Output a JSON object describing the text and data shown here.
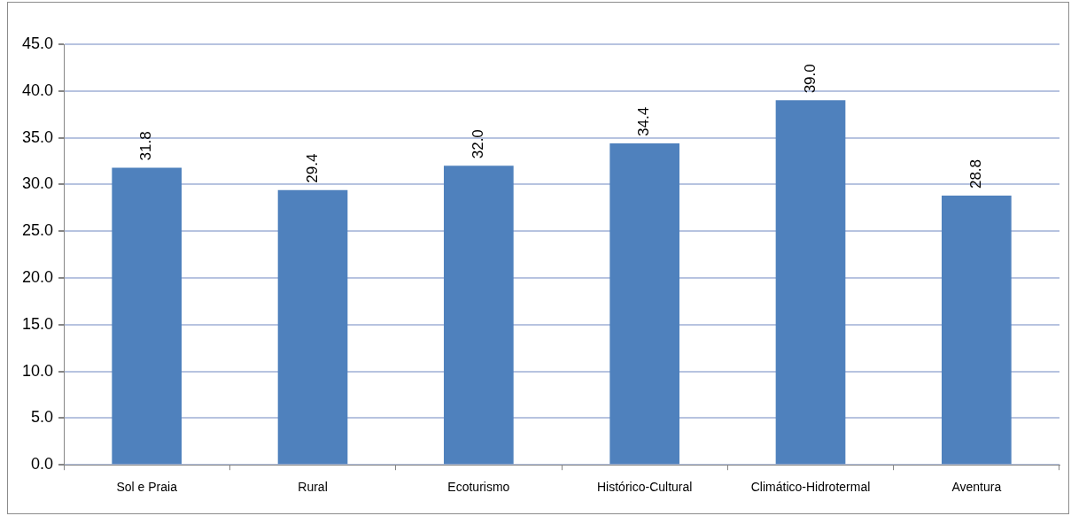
{
  "chart_data": {
    "type": "bar",
    "categories": [
      "Sol e Praia",
      "Rural",
      "Ecoturismo",
      "Histórico-Cultural",
      "Climático-Hidrotermal",
      "Aventura"
    ],
    "values": [
      31.8,
      29.4,
      32.0,
      34.4,
      39.0,
      28.8
    ],
    "color": "#4f81bd",
    "ylim": [
      0,
      45
    ],
    "yticks": [
      {
        "value": 0,
        "label": "0.0"
      },
      {
        "value": 5,
        "label": "5.0"
      },
      {
        "value": 10,
        "label": "10.0"
      },
      {
        "value": 15,
        "label": "15.0"
      },
      {
        "value": 20,
        "label": "20.0"
      },
      {
        "value": 25,
        "label": "25.0"
      },
      {
        "value": 30,
        "label": "30.0"
      },
      {
        "value": 35,
        "label": "35.0"
      },
      {
        "value": 40,
        "label": "40.0"
      },
      {
        "value": 45,
        "label": "45.0"
      }
    ],
    "grid": "y",
    "data_labels": true,
    "value_labels": [
      "31.8",
      "29.4",
      "32.0",
      "34.4",
      "39.0",
      "28.8"
    ],
    "legend": false
  }
}
